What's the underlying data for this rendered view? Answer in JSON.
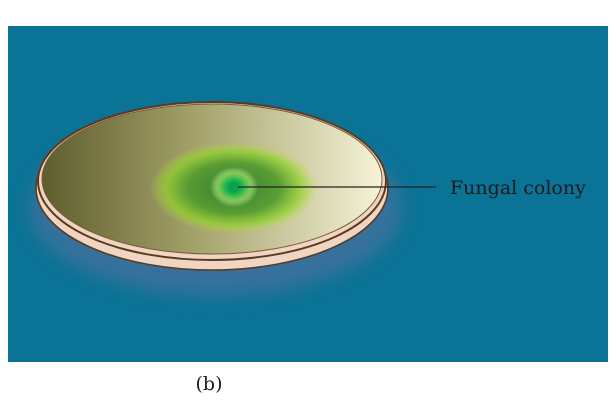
{
  "figure": {
    "callout_label": "Fungal colony",
    "caption": "(b)"
  },
  "colors": {
    "background_panel": "#0a7396",
    "dish_rim_outer": "#5a3a22",
    "dish_rim_fill": "#f0d6c2",
    "agar_dark": "#6b6a36",
    "agar_light": "#f4f1d4",
    "colony_outer": "#8ed12a",
    "colony_inner": "#0aa04e",
    "leader_line": "#222222"
  }
}
